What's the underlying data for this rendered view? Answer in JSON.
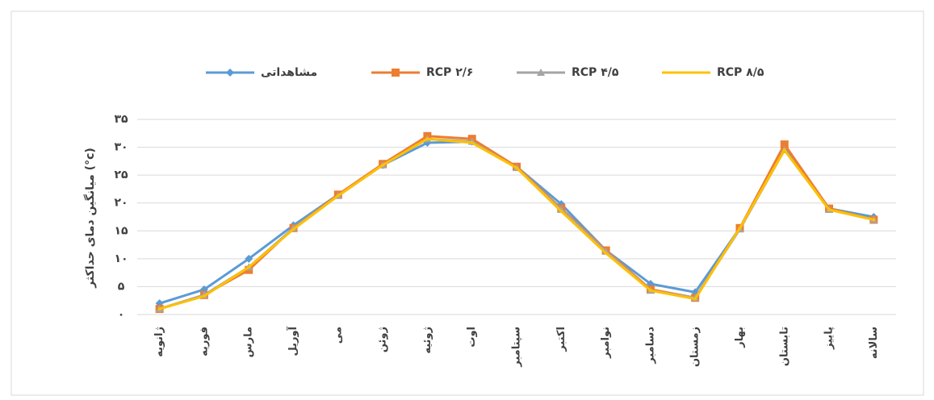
{
  "chart_data": {
    "type": "line",
    "y_label": "میانگین دمای حداکثر (°c)",
    "categories": [
      "ژانویه",
      "فوریه",
      "مارس",
      "آوریل",
      "می",
      "ژوئن",
      "ژوئیه",
      "اوت",
      "سپتامبر",
      "اکتبر",
      "نوامبر",
      "دسامبر",
      "زمستان",
      "بهار",
      "تابستان",
      "پاییز",
      "سالانه"
    ],
    "series": [
      {
        "name": "مشاهداتی",
        "color": "#5b9bd5",
        "marker": "diamond",
        "values": [
          2,
          4.5,
          10,
          16,
          21.5,
          26.8,
          30.8,
          31,
          26.5,
          19.8,
          11.5,
          5.5,
          4,
          15.5,
          30,
          19,
          17.5
        ]
      },
      {
        "name": "RCP ۲/۶",
        "color": "#ed7d31",
        "marker": "square",
        "values": [
          1,
          3.5,
          8,
          15.5,
          21.5,
          27,
          32,
          31.5,
          26.5,
          19,
          11.5,
          4.5,
          3,
          15.5,
          30.5,
          19,
          17
        ]
      },
      {
        "name": "RCP ۴/۵",
        "color": "#a5a5a5",
        "marker": "triangle",
        "values": [
          1,
          3.5,
          8.5,
          15.5,
          21.3,
          26.8,
          31.5,
          31,
          26.3,
          18.8,
          11.3,
          4.3,
          3,
          15.3,
          29.5,
          18.8,
          17
        ]
      },
      {
        "name": "RCP ۸/۵",
        "color": "#ffc000",
        "marker": "none",
        "values": [
          1,
          3.3,
          8.5,
          15.3,
          21.3,
          26.8,
          31.5,
          30.8,
          26.3,
          18.5,
          11,
          4.3,
          2.8,
          15.5,
          29.5,
          18.8,
          17
        ]
      }
    ],
    "ylim": [
      0,
      35
    ],
    "yticks": [
      {
        "value": 0,
        "label": "۰"
      },
      {
        "value": 5,
        "label": "۵"
      },
      {
        "value": 10,
        "label": "۱۰"
      },
      {
        "value": 15,
        "label": "۱۵"
      },
      {
        "value": 20,
        "label": "۲۰"
      },
      {
        "value": 25,
        "label": "۲۵"
      },
      {
        "value": 30,
        "label": "۳۰"
      },
      {
        "value": 35,
        "label": "۳۵"
      }
    ],
    "grid": true,
    "legend": "top"
  }
}
